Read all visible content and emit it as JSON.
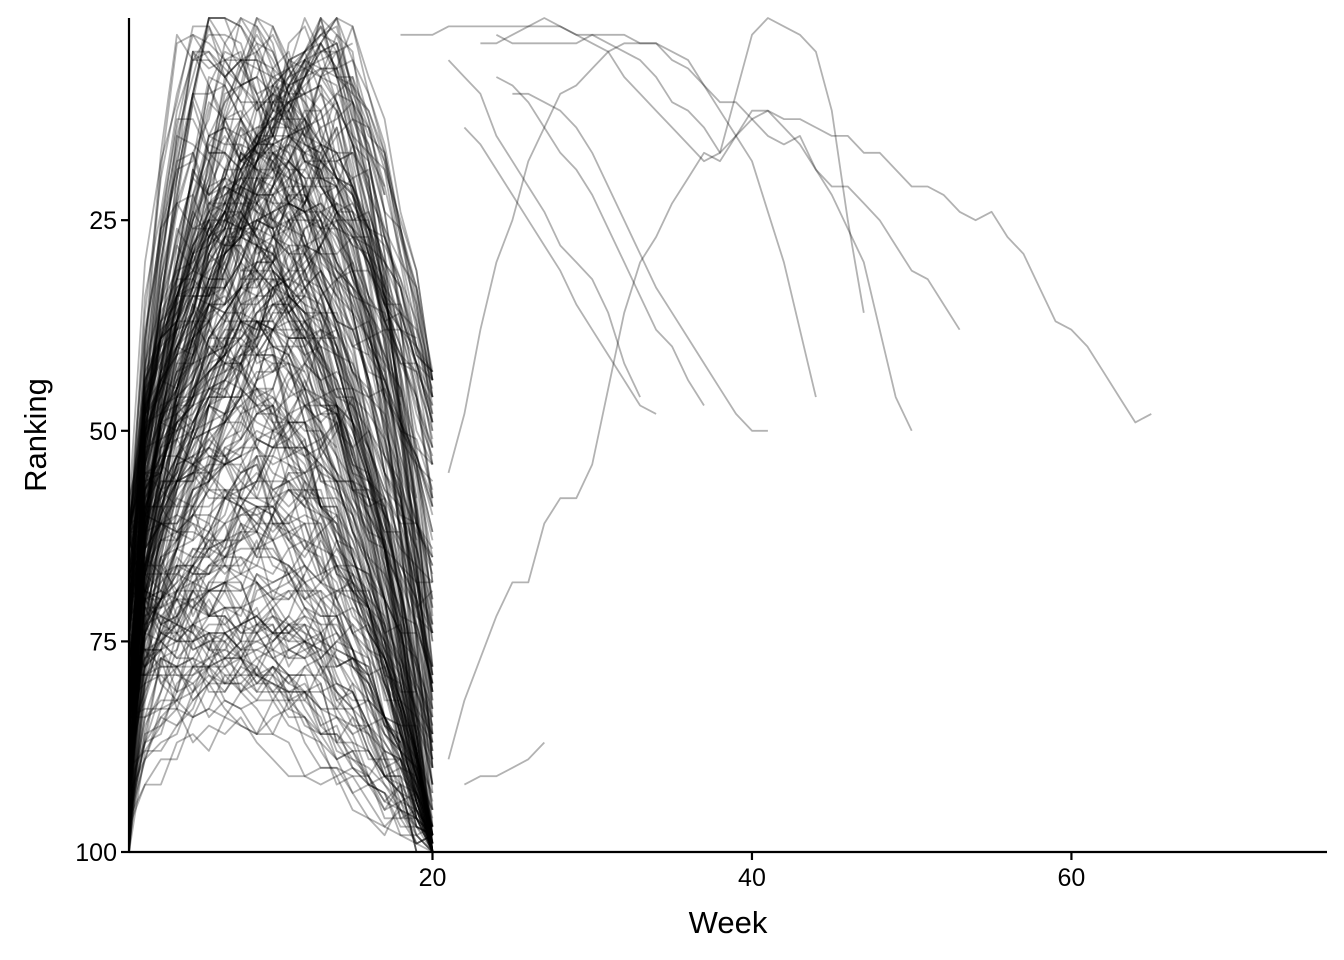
{
  "chart_data": {
    "type": "line",
    "xlabel": "Week",
    "ylabel": "Ranking",
    "xlim": [
      1,
      76
    ],
    "ylim": [
      100,
      1
    ],
    "y_reversed": true,
    "x_ticks": [
      20,
      40,
      60
    ],
    "y_ticks": [
      25,
      50,
      75,
      100
    ],
    "grid": false,
    "legend": "none",
    "line_color": "#000000",
    "line_alpha": 0.3,
    "series_generation": {
      "count": 300,
      "max_weeks": 20,
      "entry_rank_range": [
        60,
        100
      ],
      "peak_rank_range": [
        1,
        85
      ],
      "peak_week_range": [
        4,
        15
      ],
      "seed": 7
    },
    "series": [
      {
        "x": [
          22,
          23,
          24,
          25,
          26,
          27
        ],
        "y": [
          92,
          91,
          91,
          90,
          89,
          87
        ]
      },
      {
        "x": [
          21,
          22,
          23,
          24,
          25,
          26,
          27,
          28,
          29,
          30,
          31,
          32,
          33,
          34,
          35,
          36,
          37,
          38,
          39,
          40,
          41,
          42,
          43,
          44,
          45,
          46,
          47,
          48,
          49,
          50,
          51,
          52,
          53,
          54,
          55,
          56,
          57,
          58,
          59,
          60,
          61,
          62,
          63,
          64,
          65
        ],
        "y": [
          89,
          82,
          77,
          72,
          68,
          68,
          61,
          58,
          58,
          54,
          45,
          36,
          30,
          27,
          23,
          20,
          17,
          18,
          15,
          12,
          12,
          13,
          13,
          14,
          15,
          15,
          17,
          17,
          19,
          21,
          21,
          22,
          24,
          25,
          24,
          27,
          29,
          33,
          37,
          38,
          40,
          43,
          46,
          49,
          48
        ]
      },
      {
        "x": [
          21,
          22,
          23,
          24,
          25,
          26,
          27,
          28,
          29,
          30,
          31,
          32,
          33,
          34,
          35,
          36,
          37,
          38,
          39,
          40,
          41,
          42,
          43,
          44,
          45,
          46,
          47,
          48,
          49,
          50,
          51,
          52,
          53
        ],
        "y": [
          55,
          48,
          38,
          30,
          25,
          18,
          14,
          10,
          9,
          7,
          5,
          4,
          4,
          4,
          5,
          6,
          9,
          11,
          11,
          13,
          15,
          16,
          15,
          19,
          21,
          21,
          23,
          25,
          28,
          31,
          32,
          35,
          38
        ]
      },
      {
        "x": [
          18,
          19,
          20,
          21,
          22,
          23,
          24,
          25,
          26,
          27,
          28,
          29,
          30,
          31,
          32,
          33,
          34,
          35,
          36,
          37,
          38,
          39,
          40,
          41,
          42,
          43,
          44,
          45,
          46,
          47,
          48,
          49,
          50
        ],
        "y": [
          3,
          3,
          3,
          2,
          2,
          2,
          2,
          2,
          2,
          2,
          2,
          3,
          3,
          4,
          5,
          6,
          8,
          11,
          12,
          14,
          17,
          15,
          13,
          12,
          14,
          16,
          19,
          22,
          26,
          30,
          38,
          46,
          50
        ]
      },
      {
        "x": [
          23,
          24,
          25,
          26,
          27,
          28,
          29,
          30,
          31,
          32,
          33,
          34,
          35,
          36,
          37,
          38,
          39,
          40,
          41,
          42,
          43,
          44,
          45,
          46,
          47
        ],
        "y": [
          4,
          4,
          3,
          2,
          1,
          2,
          3,
          4,
          5,
          8,
          10,
          12,
          14,
          16,
          18,
          17,
          10,
          3,
          1,
          2,
          3,
          5,
          12,
          25,
          36
        ]
      },
      {
        "x": [
          24,
          25,
          26,
          27,
          28,
          29,
          30,
          31,
          32,
          33,
          34,
          35,
          36,
          37,
          38,
          39,
          40,
          41,
          42,
          43,
          44
        ],
        "y": [
          3,
          4,
          4,
          4,
          4,
          4,
          3,
          3,
          3,
          4,
          4,
          6,
          7,
          9,
          12,
          15,
          18,
          24,
          30,
          38,
          46
        ]
      },
      {
        "x": [
          21,
          22,
          23,
          24,
          25,
          26,
          27,
          28,
          29,
          30,
          31,
          32,
          33
        ],
        "y": [
          6,
          8,
          10,
          15,
          18,
          21,
          24,
          28,
          30,
          32,
          36,
          42,
          46
        ]
      },
      {
        "x": [
          24,
          25,
          26,
          27,
          28,
          29,
          30,
          31,
          32,
          33,
          34,
          35,
          36,
          37
        ],
        "y": [
          8,
          9,
          11,
          14,
          17,
          19,
          22,
          26,
          30,
          34,
          38,
          40,
          44,
          47
        ]
      },
      {
        "x": [
          25,
          26,
          27,
          28,
          29,
          30,
          31,
          32,
          33,
          34,
          35,
          36,
          37,
          38,
          39,
          40,
          41
        ],
        "y": [
          10,
          10,
          11,
          12,
          14,
          17,
          21,
          25,
          29,
          33,
          36,
          39,
          42,
          45,
          48,
          50,
          50
        ]
      },
      {
        "x": [
          22,
          23,
          24,
          25,
          26,
          27,
          28,
          29,
          30,
          31,
          32,
          33,
          34
        ],
        "y": [
          14,
          16,
          19,
          22,
          25,
          28,
          31,
          35,
          38,
          41,
          44,
          47,
          48
        ]
      }
    ]
  }
}
